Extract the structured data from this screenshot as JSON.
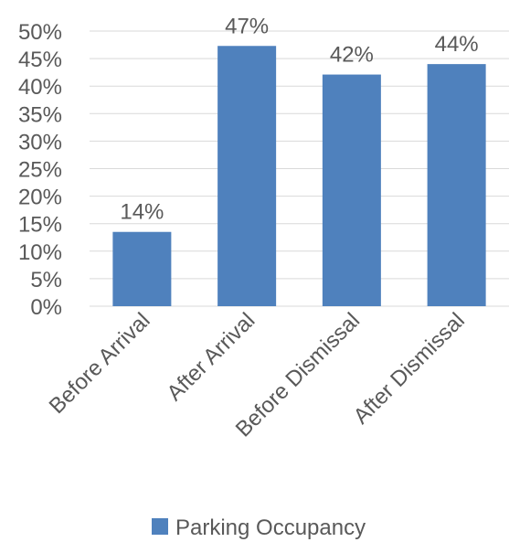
{
  "chart_data": {
    "type": "bar",
    "categories": [
      "Before Arrival",
      "After Arrival",
      "Before Dismissal",
      "After Dismissal"
    ],
    "series": [
      {
        "name": "Parking Occupancy",
        "values": [
          0.135,
          0.473,
          0.421,
          0.44
        ],
        "data_labels": [
          "14%",
          "47%",
          "42%",
          "44%"
        ]
      }
    ],
    "ylim": [
      0,
      0.5
    ],
    "y_ticks": [
      0,
      0.05,
      0.1,
      0.15,
      0.2,
      0.25,
      0.3,
      0.35,
      0.4,
      0.45,
      0.5
    ],
    "y_tick_labels": [
      "0%",
      "5%",
      "10%",
      "15%",
      "20%",
      "25%",
      "30%",
      "35%",
      "40%",
      "45%",
      "50%"
    ],
    "gridlines": true,
    "legend_position": "bottom",
    "colors": {
      "bar": "#4f81bd",
      "grid": "#d9d9d9",
      "text": "#595959"
    }
  }
}
